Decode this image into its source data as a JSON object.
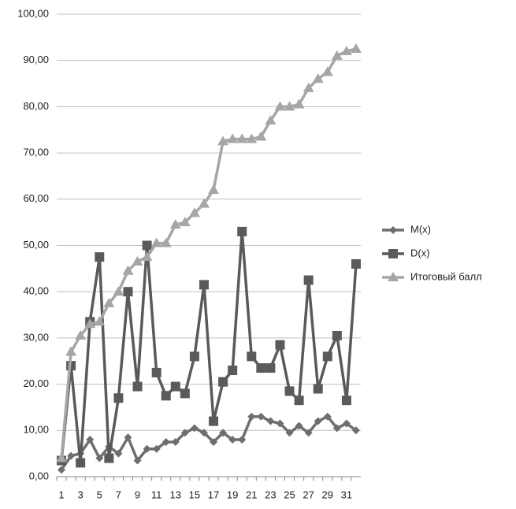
{
  "chart_data": {
    "type": "line",
    "categories": [
      1,
      null,
      3,
      null,
      5,
      null,
      7,
      null,
      9,
      null,
      11,
      null,
      13,
      null,
      15,
      null,
      17,
      null,
      19,
      null,
      21,
      null,
      23,
      null,
      25,
      null,
      27,
      null,
      29,
      null,
      31,
      null
    ],
    "series": [
      {
        "name": "M(x)",
        "color": "#6e6e6e",
        "marker": "diamond",
        "values": [
          1.5,
          4.5,
          5,
          8,
          4,
          6.5,
          5,
          8.5,
          3.5,
          6,
          6,
          7.5,
          7.5,
          9.5,
          10.5,
          9.5,
          7.5,
          9.5,
          8,
          8,
          13,
          13,
          12,
          11.5,
          9.5,
          11,
          9.5,
          12,
          13,
          10.5,
          11.5,
          10
        ]
      },
      {
        "name": "D(x)",
        "color": "#5a5a5a",
        "marker": "square",
        "values": [
          3.5,
          24,
          3,
          33.5,
          47.5,
          4,
          17,
          40,
          19.5,
          50,
          22.5,
          17.5,
          19.5,
          18,
          26,
          41.5,
          12,
          20.5,
          23,
          53,
          26,
          23.5,
          23.5,
          28.5,
          18.5,
          16.5,
          42.5,
          19,
          26,
          30.5,
          16.5,
          46
        ]
      },
      {
        "name": "Итоговый балл",
        "color": "#a6a6a6",
        "marker": "triangle",
        "values": [
          4,
          27,
          30.5,
          33,
          33.5,
          37.5,
          40,
          44.5,
          46.5,
          47.5,
          50.5,
          50.5,
          54.5,
          55,
          57,
          59,
          62,
          72.5,
          73,
          73,
          73,
          73.5,
          77,
          80,
          80,
          80.5,
          84,
          86,
          87.5,
          91,
          92,
          92.5
        ]
      }
    ],
    "ylim": [
      0,
      100
    ],
    "yticks": [
      {
        "value": 0,
        "label": "0,00"
      },
      {
        "value": 10,
        "label": "10,00"
      },
      {
        "value": 20,
        "label": "20,00"
      },
      {
        "value": 30,
        "label": "30,00"
      },
      {
        "value": 40,
        "label": "40,00"
      },
      {
        "value": 50,
        "label": "50,00"
      },
      {
        "value": 60,
        "label": "60,00"
      },
      {
        "value": 70,
        "label": "70,00"
      },
      {
        "value": 80,
        "label": "80,00"
      },
      {
        "value": 90,
        "label": "90,00"
      },
      {
        "value": 100,
        "label": "100,00"
      }
    ],
    "grid": true,
    "legend": "right"
  }
}
